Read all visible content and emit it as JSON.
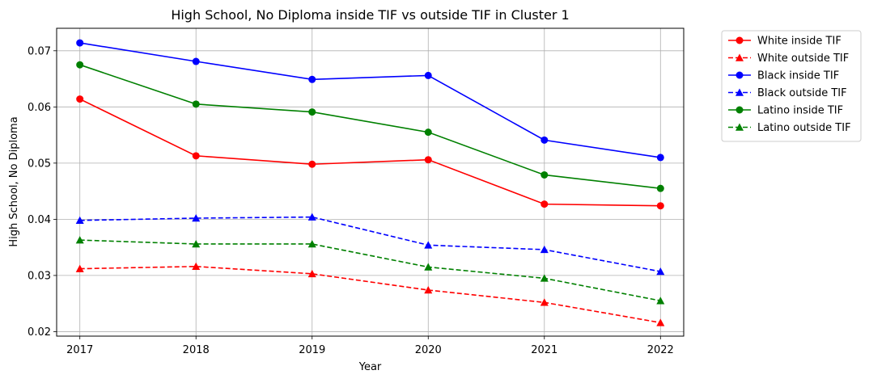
{
  "chart_data": {
    "type": "line",
    "title": "High School, No Diploma inside TIF vs outside TIF in Cluster 1",
    "xlabel": "Year",
    "ylabel": "High School, No Diploma",
    "x": [
      2017,
      2018,
      2019,
      2020,
      2021,
      2022
    ],
    "xlim": [
      2016.8,
      2022.2
    ],
    "ylim": [
      0.0192,
      0.074
    ],
    "yticks": [
      0.02,
      0.03,
      0.04,
      0.05,
      0.06,
      0.07
    ],
    "grid": true,
    "legend_position": "outside-right-top",
    "series": [
      {
        "name": "White inside TIF",
        "color": "#ff0000",
        "linestyle": "solid",
        "marker": "circle",
        "values": [
          0.0614,
          0.0513,
          0.0498,
          0.0506,
          0.0427,
          0.0424
        ]
      },
      {
        "name": "White outside TIF",
        "color": "#ff0000",
        "linestyle": "dashed",
        "marker": "triangle",
        "values": [
          0.0312,
          0.0316,
          0.0303,
          0.0274,
          0.0252,
          0.0216
        ]
      },
      {
        "name": "Black inside TIF",
        "color": "#0000ff",
        "linestyle": "solid",
        "marker": "circle",
        "values": [
          0.0714,
          0.0681,
          0.0649,
          0.0656,
          0.0541,
          0.051
        ]
      },
      {
        "name": "Black outside TIF",
        "color": "#0000ff",
        "linestyle": "dashed",
        "marker": "triangle",
        "values": [
          0.0398,
          0.0402,
          0.0404,
          0.0354,
          0.0346,
          0.0307
        ]
      },
      {
        "name": "Latino inside TIF",
        "color": "#008000",
        "linestyle": "solid",
        "marker": "circle",
        "values": [
          0.0675,
          0.0605,
          0.0591,
          0.0555,
          0.0479,
          0.0455
        ]
      },
      {
        "name": "Latino outside TIF",
        "color": "#008000",
        "linestyle": "dashed",
        "marker": "triangle",
        "values": [
          0.0363,
          0.0356,
          0.0356,
          0.0315,
          0.0295,
          0.0255
        ]
      }
    ]
  }
}
